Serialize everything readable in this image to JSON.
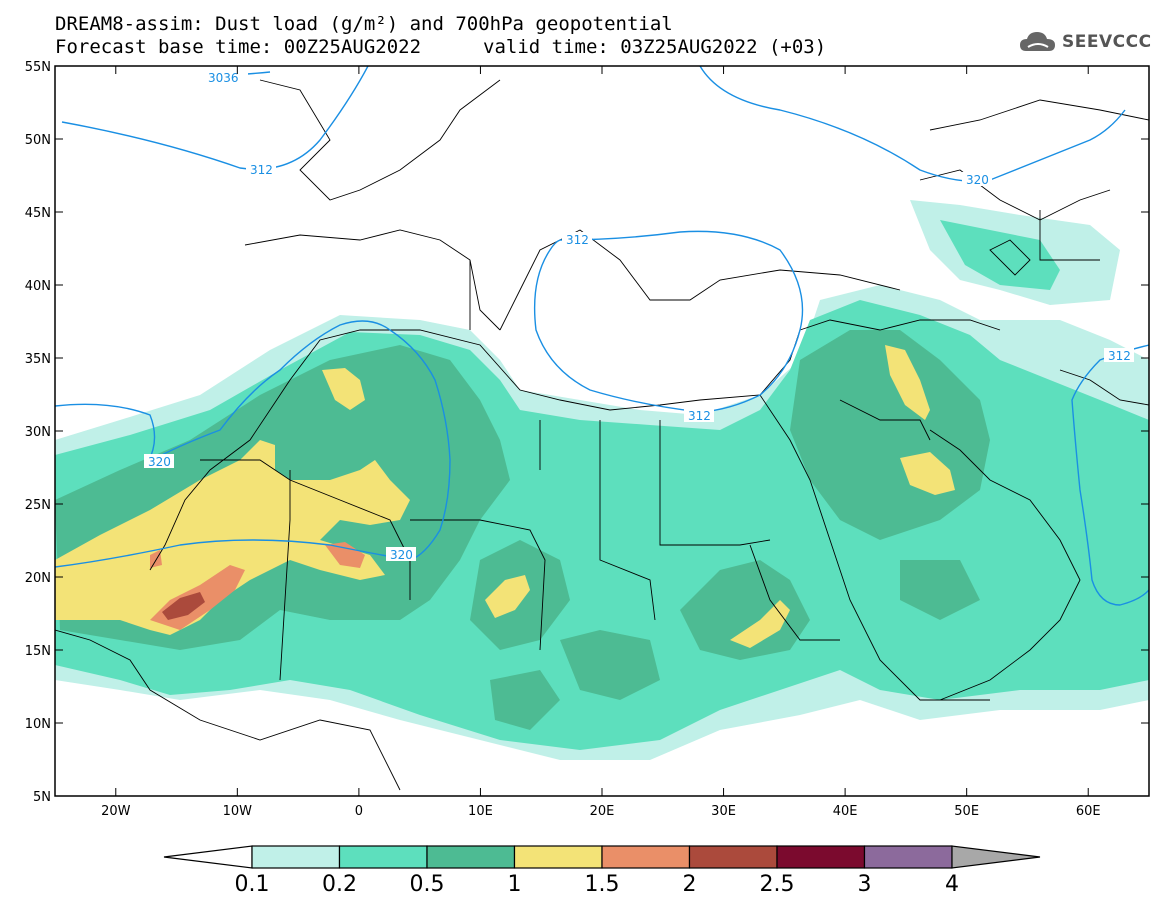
{
  "header": {
    "title_line1": "DREAM8-assim: Dust load (g/m²) and 700hPa geopotential",
    "title_line2_left": "Forecast base time: 00Z25AUG2022",
    "title_line2_right": "valid time: 03Z25AUG2022 (+03)"
  },
  "logo": {
    "text": "SEEVCCC",
    "icon": "cloud-logo-icon"
  },
  "map": {
    "lon_range": [
      -25,
      65
    ],
    "lat_range": [
      5,
      55
    ],
    "lat_ticks": [
      "55N",
      "50N",
      "45N",
      "40N",
      "35N",
      "30N",
      "25N",
      "20N",
      "15N",
      "10N",
      "5N"
    ],
    "lon_ticks": [
      "20W",
      "10W",
      "0",
      "10E",
      "20E",
      "30E",
      "40E",
      "50E",
      "60E"
    ],
    "contour_labels": [
      "3036",
      "312",
      "312",
      "312",
      "320",
      "320",
      "320",
      "312"
    ]
  },
  "colorbar": {
    "levels": [
      "0.1",
      "0.2",
      "0.5",
      "1",
      "1.5",
      "2",
      "2.5",
      "3",
      "4"
    ],
    "colors": [
      "#c0f0e8",
      "#5ddfbd",
      "#4dbb93",
      "#f3e377",
      "#ea8f68",
      "#ab4a3c",
      "#7b0a2e",
      "#8c6a9c"
    ],
    "low_color": "#ffffff",
    "high_color": "#a8a8a8"
  },
  "colors": {
    "dust_l1": "#c0f0e8",
    "dust_l2": "#5ddfbd",
    "dust_l3": "#4dbb93",
    "dust_l4": "#f3e377",
    "dust_l5": "#ea8f68",
    "dust_l6": "#ab4a3c",
    "geopotential": "#1a8fe3"
  }
}
